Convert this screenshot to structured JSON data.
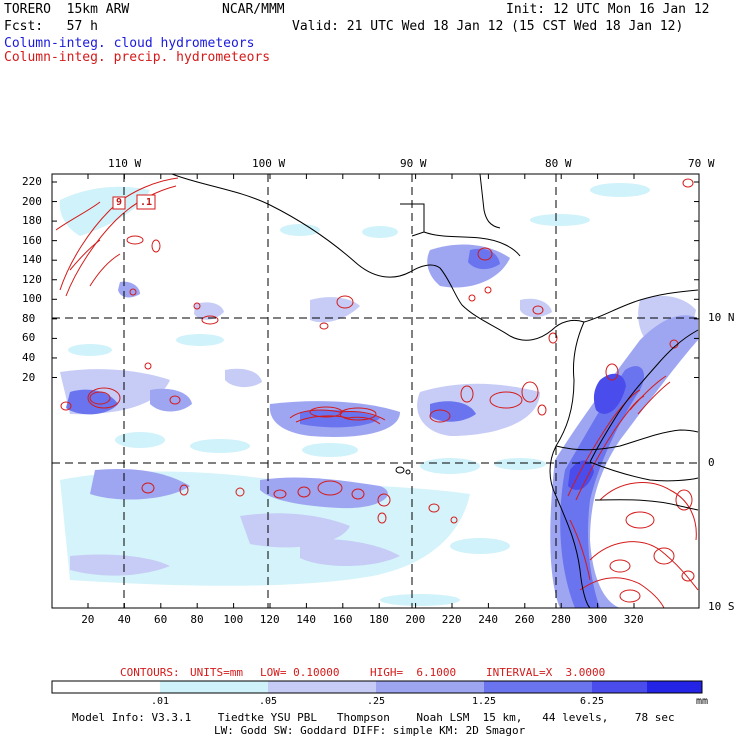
{
  "header": {
    "model": "TORERO  15km ARW",
    "center": "NCAR/MMM",
    "init": "Init: 12 UTC Mon 16 Jan 12",
    "fcst": "Fcst:   57 h",
    "valid": "Valid: 21 UTC Wed 18 Jan 12 (15 CST Wed 18 Jan 12)",
    "field1": "Column-integ. cloud hydrometeors",
    "field2": "Column-integ. precip. hydrometeors"
  },
  "map": {
    "top_lon_labels": [
      "110 W",
      "100 W",
      "90 W",
      "80 W",
      "70 W"
    ],
    "right_lat_labels": [
      "10 N",
      "0",
      "10 S"
    ],
    "y_ticks": [
      "220",
      "200",
      "180",
      "160",
      "140",
      "120",
      "100",
      "80",
      "60",
      "40",
      "20"
    ],
    "x_ticks": [
      "20",
      "40",
      "60",
      "80",
      "100",
      "120",
      "140",
      "160",
      "180",
      "200",
      "220",
      "240",
      "260",
      "280",
      "300",
      "320"
    ],
    "grid_x": [
      40,
      113,
      185,
      262
    ],
    "grid_y": [
      150,
      76
    ],
    "contour_labels": [
      "9",
      ".1"
    ]
  },
  "contours_line": {
    "label": "CONTOURS:",
    "units": "UNITS=mm",
    "low": "LOW= 0.10000",
    "high": "HIGH=  6.1000",
    "interval": "INTERVAL=X  3.0000"
  },
  "colorbar": {
    "labels": [
      ".01",
      ".05",
      ".25",
      "1.25",
      "6.25"
    ],
    "unit": "mm",
    "colors": [
      "#ffffff",
      "#d0f2fa",
      "#c6ccf6",
      "#9ea6f2",
      "#6a74ee",
      "#4a4cec",
      "#2424e6"
    ]
  },
  "footer": {
    "line1": "Model Info: V3.3.1    Tiedtke YSU PBL   Thompson    Noah LSM  15 km,   44 levels,    78 sec",
    "line2": "LW: Godd SW: Goddard DIFF: simple KM: 2D Smagor"
  }
}
